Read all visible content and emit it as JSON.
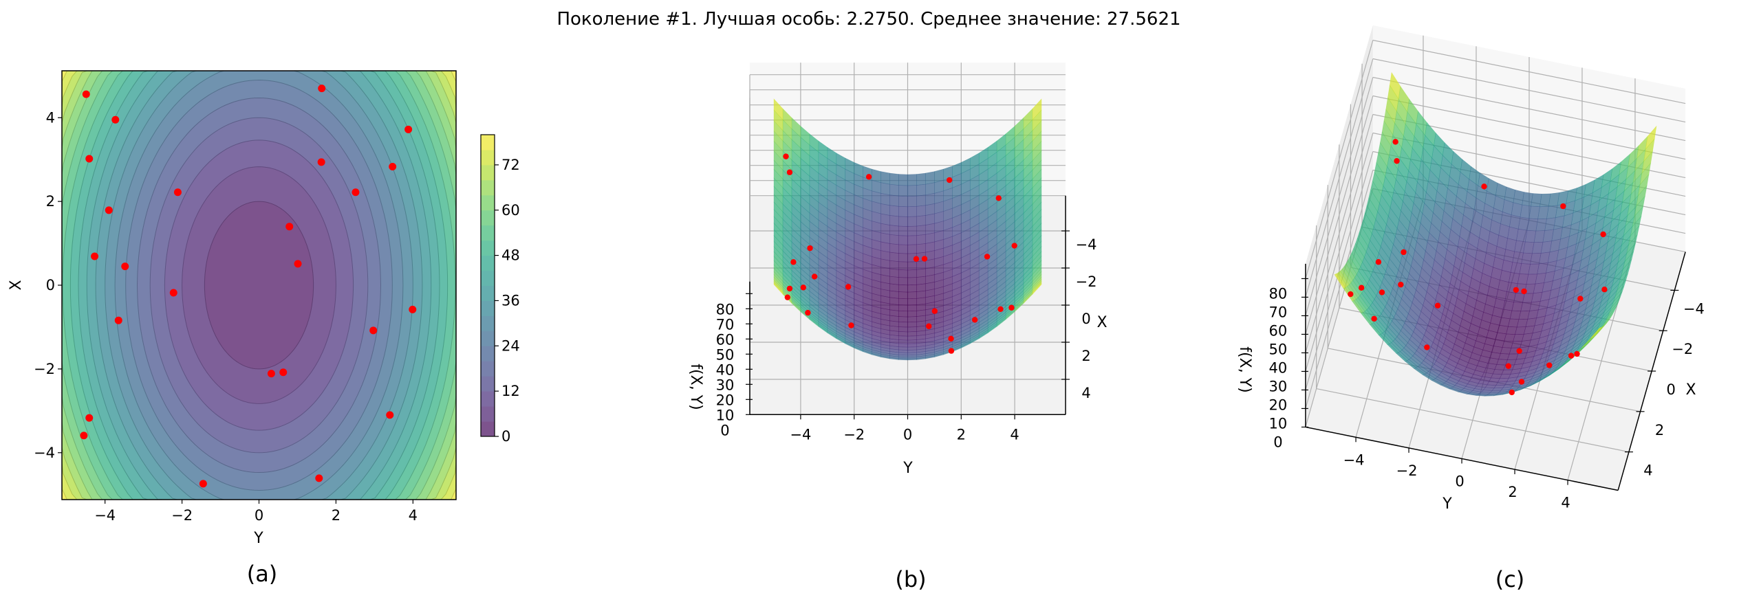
{
  "title": "Поколение #1. Лучшая особь: 2.2750. Среднее значение: 27.5621",
  "panel_labels": {
    "a": "(a)",
    "b": "(b)",
    "c": "(c)"
  },
  "chart_data": [
    {
      "type": "contour",
      "panel": "a",
      "xlabel": "Y",
      "ylabel": "X",
      "xlim": [
        -5.12,
        5.12
      ],
      "ylim": [
        -5.12,
        5.12
      ],
      "x_ticks": [
        -4,
        -2,
        0,
        2,
        4
      ],
      "y_ticks": [
        -4,
        -2,
        0,
        2,
        4
      ],
      "colormap": "viridis",
      "alpha": 0.7,
      "level_step": 4,
      "colorbar": {
        "range": [
          0,
          80
        ],
        "ticks": [
          0,
          12,
          24,
          36,
          48,
          60,
          72
        ]
      },
      "marker_color": "#ff0000",
      "points": {
        "Y": [
          -4.49,
          -3.73,
          -4.41,
          -3.9,
          -2.11,
          -4.27,
          -3.48,
          -2.22,
          -3.65,
          -4.41,
          -4.55,
          -1.45,
          1.63,
          1.62,
          3.88,
          3.47,
          2.51,
          0.79,
          1.01,
          3.99,
          2.97,
          0.32,
          0.63,
          3.4,
          1.56
        ],
        "X": [
          4.56,
          3.95,
          3.02,
          1.79,
          2.22,
          0.69,
          0.45,
          -0.18,
          -0.84,
          -3.17,
          -3.59,
          -4.74,
          4.7,
          2.94,
          3.72,
          2.83,
          2.22,
          1.4,
          0.51,
          -0.58,
          -1.08,
          -2.11,
          -2.08,
          -3.1,
          -4.61
        ]
      }
    },
    {
      "type": "surface",
      "panel": "b",
      "xlabel": "X",
      "ylabel": "Y",
      "zlabel": "f(X, Y)",
      "y_ticks": [
        -4,
        -2,
        0,
        2,
        4
      ],
      "x_ticks": [
        -4,
        -2,
        0,
        2,
        4
      ],
      "z_ticks": [
        0,
        10,
        20,
        30,
        40,
        50,
        60,
        70,
        80
      ],
      "colormap": "viridis",
      "alpha": 0.7,
      "marker_color": "#ff0000"
    },
    {
      "type": "surface",
      "panel": "c",
      "xlabel": "X",
      "ylabel": "Y",
      "zlabel": "f(X, Y)",
      "y_ticks": [
        -4,
        -2,
        0,
        2,
        4
      ],
      "x_ticks": [
        -4,
        -2,
        0,
        2,
        4
      ],
      "z_ticks": [
        0,
        10,
        20,
        30,
        40,
        50,
        60,
        70,
        80
      ],
      "colormap": "viridis",
      "alpha": 0.7,
      "marker_color": "#ff0000"
    }
  ]
}
